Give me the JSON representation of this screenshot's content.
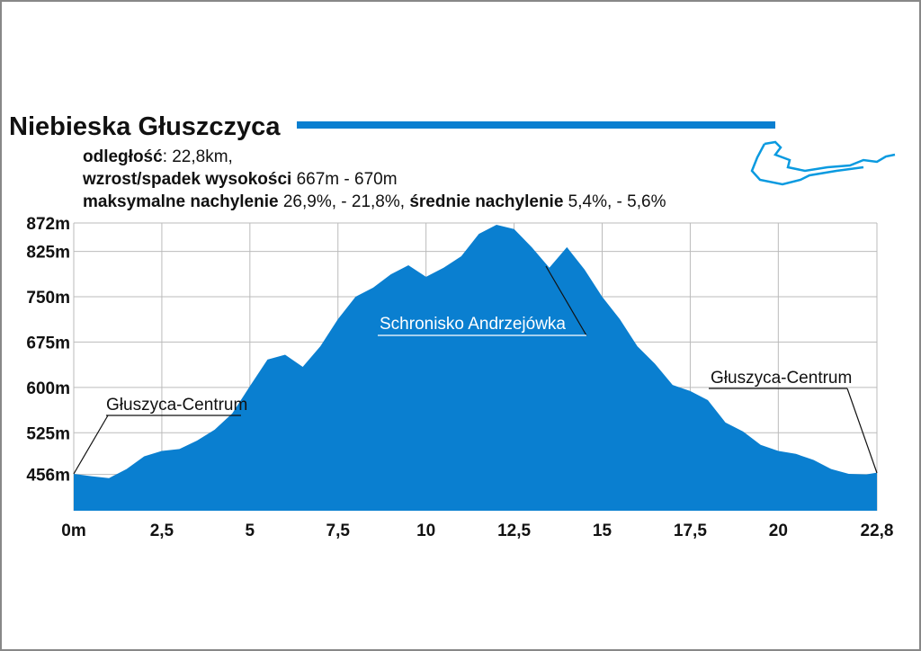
{
  "chart_data": {
    "type": "area",
    "title": "Niebieska Głuszczyca",
    "stats": [
      [
        {
          "text": "odległość",
          "bold": true
        },
        {
          "text": ": 22,8km,",
          "bold": false
        }
      ],
      [
        {
          "text": "wzrost/spadek wysokości",
          "bold": true
        },
        {
          "text": " 667m - 670m",
          "bold": false
        }
      ],
      [
        {
          "text": "maksymalne nachylenie",
          "bold": true
        },
        {
          "text": " 26,9%, - 21,8%, ",
          "bold": false
        },
        {
          "text": "średnie nachylenie",
          "bold": true
        },
        {
          "text": " 5,4%, - 5,6%",
          "bold": false
        }
      ]
    ],
    "annotations": [
      "Głuszyca-Centrum",
      "Schronisko Andrzejówka",
      "Głuszyca-Centrum"
    ],
    "color": "#0a7fd0",
    "grid": true,
    "x": [
      0,
      0.5,
      1,
      1.5,
      2,
      2.5,
      3,
      3.5,
      4,
      4.5,
      5,
      5.5,
      6,
      6.5,
      7,
      7.5,
      8,
      8.5,
      9,
      9.5,
      10,
      10.5,
      11,
      11.5,
      12,
      12.5,
      13,
      13.5,
      14,
      14.5,
      15,
      15.5,
      16,
      16.5,
      17,
      17.5,
      18,
      18.5,
      19,
      19.5,
      20,
      20.5,
      21,
      21.5,
      22,
      22.5,
      22.8
    ],
    "values": [
      457,
      453,
      450,
      465,
      486,
      495,
      498,
      512,
      530,
      557,
      602,
      646,
      654,
      634,
      668,
      713,
      750,
      765,
      787,
      802,
      783,
      798,
      817,
      854,
      869,
      862,
      832,
      798,
      832,
      795,
      750,
      713,
      668,
      639,
      604,
      594,
      579,
      542,
      527,
      505,
      495,
      490,
      480,
      465,
      457,
      456,
      459
    ],
    "xlim": [
      0,
      22.8
    ],
    "xticks": [
      {
        "value": 0,
        "label": "0m"
      },
      {
        "value": 2.5,
        "label": "2,5"
      },
      5,
      {
        "value": 7.5,
        "label": "7,5"
      },
      10,
      {
        "value": 12.5,
        "label": "12,5"
      },
      15,
      {
        "value": 17.5,
        "label": "17,5"
      },
      20,
      {
        "value": 22.8,
        "label": "22,8"
      }
    ],
    "ylim": [
      396,
      872
    ],
    "yticks": [
      {
        "value": 456,
        "label": "456m"
      },
      {
        "value": 525,
        "label": "525m"
      },
      {
        "value": 600,
        "label": "600m"
      },
      {
        "value": 675,
        "label": "675m"
      },
      {
        "value": 750,
        "label": "750m"
      },
      {
        "value": 825,
        "label": "825m"
      },
      {
        "value": 872,
        "label": "872m"
      }
    ]
  }
}
